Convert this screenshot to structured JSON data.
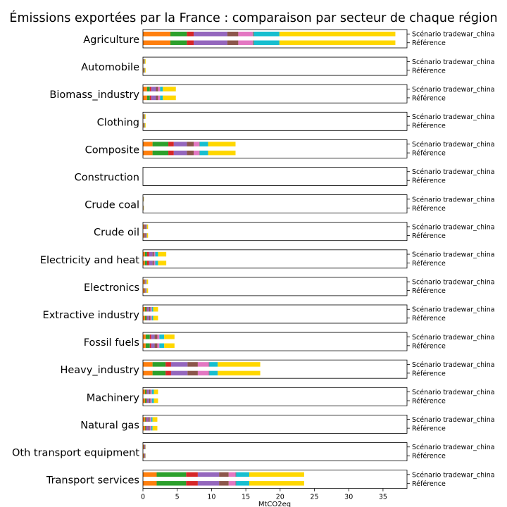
{
  "chart_data": {
    "type": "bar",
    "orientation": "horizontal-stacked",
    "title": "Émissions exportées par la France : comparaison par secteur de chaque région",
    "xlabel": "MtCO2eq",
    "xlim": [
      0,
      38.5
    ],
    "xticks": [
      0,
      5,
      10,
      15,
      20,
      25,
      30,
      35
    ],
    "bar_labels": [
      "Scénario tradewar_china",
      "Référence"
    ],
    "segment_colors": [
      "#ff7f0e",
      "#2ca02c",
      "#d62728",
      "#9467bd",
      "#8c564b",
      "#e377c2",
      "#7f7f7f",
      "#bcbd22",
      "#17becf",
      "#ffd700"
    ],
    "sectors": [
      {
        "name": "Agriculture",
        "segments": [
          4.0,
          2.4,
          1.0,
          4.9,
          1.6,
          2.1,
          0.2,
          0.0,
          3.7,
          16.9
        ]
      },
      {
        "name": "Automobile",
        "segments": [
          0.1,
          0.05,
          0.02,
          0.05,
          0.03,
          0.02,
          0.0,
          0.0,
          0.02,
          0.1
        ]
      },
      {
        "name": "Biomass_industry",
        "segments": [
          0.6,
          0.4,
          0.2,
          0.7,
          0.3,
          0.3,
          0.0,
          0.0,
          0.4,
          1.9
        ]
      },
      {
        "name": "Clothing",
        "segments": [
          0.1,
          0.05,
          0.02,
          0.05,
          0.03,
          0.02,
          0.0,
          0.0,
          0.02,
          0.1
        ]
      },
      {
        "name": "Composite",
        "segments": [
          1.4,
          2.3,
          0.8,
          1.9,
          1.0,
          0.8,
          0.1,
          0.0,
          1.2,
          4.0
        ]
      },
      {
        "name": "Construction",
        "segments": [
          0.0,
          0.0,
          0.0,
          0.0,
          0.0,
          0.0,
          0.0,
          0.0,
          0.0,
          0.0
        ]
      },
      {
        "name": "Crude coal",
        "segments": [
          0.05,
          0.02,
          0.0,
          0.02,
          0.0,
          0.0,
          0.0,
          0.0,
          0.0,
          0.04
        ]
      },
      {
        "name": "Crude oil",
        "segments": [
          0.15,
          0.05,
          0.05,
          0.1,
          0.15,
          0.05,
          0.0,
          0.0,
          0.05,
          0.15
        ]
      },
      {
        "name": "Electricity and heat",
        "segments": [
          0.3,
          0.3,
          0.3,
          0.5,
          0.2,
          0.2,
          0.0,
          0.0,
          0.4,
          1.2
        ]
      },
      {
        "name": "Electronics",
        "segments": [
          0.2,
          0.05,
          0.05,
          0.1,
          0.05,
          0.05,
          0.0,
          0.0,
          0.05,
          0.2
        ]
      },
      {
        "name": "Extractive industry",
        "segments": [
          0.3,
          0.2,
          0.1,
          0.3,
          0.2,
          0.2,
          0.0,
          0.0,
          0.2,
          0.7
        ]
      },
      {
        "name": "Fossil fuels",
        "segments": [
          0.4,
          0.6,
          0.2,
          0.5,
          0.4,
          0.3,
          0.0,
          0.0,
          0.7,
          1.5
        ]
      },
      {
        "name": "Heavy_industry",
        "segments": [
          1.4,
          1.9,
          0.8,
          2.4,
          1.5,
          1.6,
          0.1,
          0.0,
          1.2,
          6.2
        ]
      },
      {
        "name": "Machinery",
        "segments": [
          0.3,
          0.2,
          0.1,
          0.3,
          0.2,
          0.2,
          0.0,
          0.0,
          0.3,
          0.6
        ]
      },
      {
        "name": "Natural gas",
        "segments": [
          0.3,
          0.1,
          0.1,
          0.3,
          0.2,
          0.2,
          0.0,
          0.0,
          0.2,
          0.7
        ]
      },
      {
        "name": "Oth transport equipment",
        "segments": [
          0.1,
          0.05,
          0.05,
          0.1,
          0.03,
          0.02,
          0.0,
          0.0,
          0.02,
          0.03
        ]
      },
      {
        "name": "Transport services",
        "segments": [
          2.0,
          4.3,
          1.7,
          3.1,
          1.4,
          1.0,
          0.1,
          0.0,
          1.9,
          8.0
        ]
      }
    ]
  }
}
